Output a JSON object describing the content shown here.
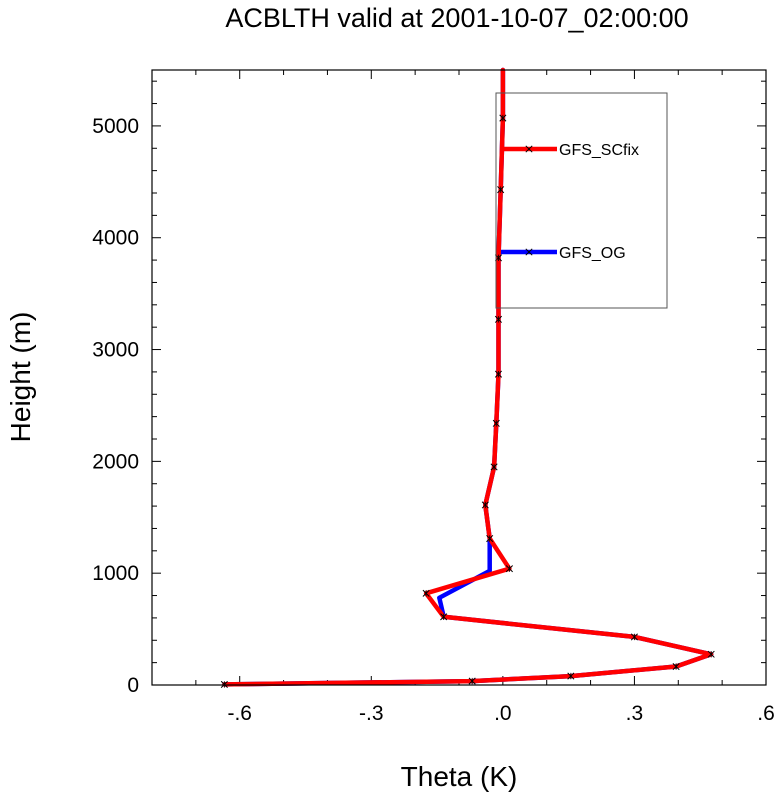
{
  "chart_data": {
    "type": "line",
    "title": "ACBLTH valid at 2001-10-07_02:00:00",
    "xlabel": "Theta (K)",
    "ylabel": "Height (m)",
    "xlim": [
      -0.8,
      0.6
    ],
    "ylim": [
      0,
      5500
    ],
    "x_ticks": [
      {
        "value": -0.6,
        "label": "-.6"
      },
      {
        "value": -0.3,
        "label": "-.3"
      },
      {
        "value": 0.0,
        "label": ".0"
      },
      {
        "value": 0.3,
        "label": ".3"
      },
      {
        "value": 0.6,
        "label": ".6"
      }
    ],
    "y_ticks": [
      {
        "value": 0,
        "label": "0"
      },
      {
        "value": 1000,
        "label": "1000"
      },
      {
        "value": 2000,
        "label": "2000"
      },
      {
        "value": 3000,
        "label": "3000"
      },
      {
        "value": 4000,
        "label": "4000"
      },
      {
        "value": 5000,
        "label": "5000"
      }
    ],
    "grid": false,
    "legend_position": "top-right",
    "series": [
      {
        "name": "GFS_OG",
        "color": "#0000ff",
        "points": [
          [
            -0.635,
            5
          ],
          [
            -0.07,
            35
          ],
          [
            0.155,
            80
          ],
          [
            0.395,
            165
          ],
          [
            0.475,
            275
          ],
          [
            0.3,
            430
          ],
          [
            -0.135,
            610
          ],
          [
            -0.145,
            780
          ],
          [
            -0.03,
            1020
          ],
          [
            -0.03,
            1310
          ],
          [
            -0.04,
            1610
          ],
          [
            -0.02,
            1950
          ],
          [
            -0.015,
            2340
          ],
          [
            -0.01,
            2780
          ],
          [
            -0.01,
            3270
          ],
          [
            -0.01,
            3820
          ],
          [
            -0.005,
            4430
          ],
          [
            0.0,
            5070
          ],
          [
            0.0,
            5500
          ]
        ]
      },
      {
        "name": "GFS_SCfix",
        "color": "#ff0000",
        "points": [
          [
            -0.635,
            5
          ],
          [
            -0.07,
            35
          ],
          [
            0.155,
            80
          ],
          [
            0.395,
            165
          ],
          [
            0.475,
            275
          ],
          [
            0.3,
            430
          ],
          [
            -0.135,
            610
          ],
          [
            -0.175,
            820
          ],
          [
            0.015,
            1040
          ],
          [
            -0.03,
            1310
          ],
          [
            -0.04,
            1610
          ],
          [
            -0.02,
            1950
          ],
          [
            -0.015,
            2340
          ],
          [
            -0.01,
            2780
          ],
          [
            -0.01,
            3270
          ],
          [
            -0.01,
            3820
          ],
          [
            -0.005,
            4430
          ],
          [
            0.0,
            5070
          ],
          [
            0.0,
            5500
          ]
        ]
      }
    ],
    "legend": [
      {
        "label": "GFS_SCfix",
        "color": "#ff0000"
      },
      {
        "label": "GFS_OG",
        "color": "#0000ff"
      }
    ]
  }
}
